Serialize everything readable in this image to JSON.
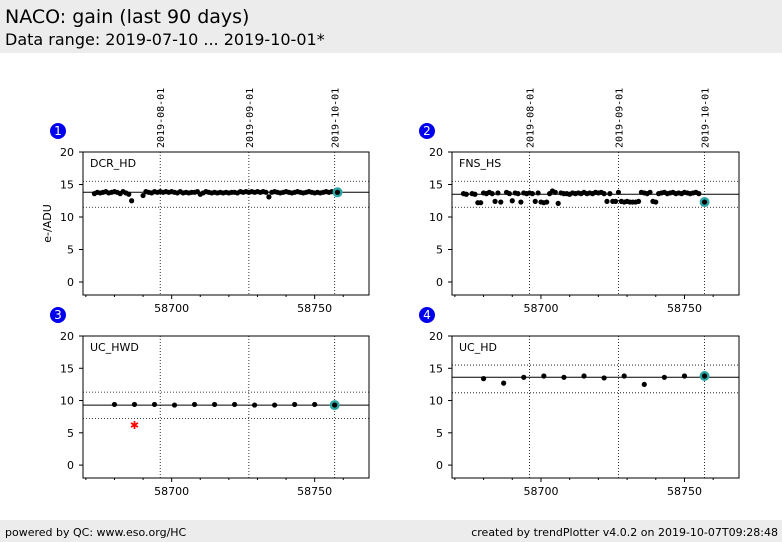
{
  "header": {
    "title": "NACO: gain (last 90 days)",
    "subtitle": "Data range: 2019-07-10 ... 2019-10-01*"
  },
  "footer": {
    "left": "powered by QC: www.eso.org/HC",
    "right": "created by trendPlotter v4.0.2 on 2019-10-07T09:28:48"
  },
  "colors": {
    "data": "#000000",
    "latest": "#2ca6a4",
    "outlier": "#ff0000",
    "badge": "#0000ee"
  },
  "chart_data": [
    {
      "type": "scatter",
      "panel": "1",
      "label": "DCR_HD",
      "ylabel": "e-/ADU",
      "xlim": [
        58669,
        58769
      ],
      "ylim": [
        -2,
        20
      ],
      "yticks": [
        0,
        5,
        10,
        15,
        20
      ],
      "xticks": [
        58700,
        58750
      ],
      "xtick_labels": [
        "58700",
        "58750"
      ],
      "date_lines": [
        58696,
        58727,
        58757
      ],
      "date_labels": [
        "2019-08-01",
        "2019-09-01",
        "2019-10-01"
      ],
      "ref_line": 13.8,
      "band": [
        11.5,
        15.5
      ],
      "series": [
        {
          "values": [
            [
              58673,
              13.6
            ],
            [
              58674,
              13.8
            ],
            [
              58675,
              13.7
            ],
            [
              58676,
              13.8
            ],
            [
              58677,
              13.9
            ],
            [
              58678,
              13.7
            ],
            [
              58679,
              13.8
            ],
            [
              58680,
              13.9
            ],
            [
              58681,
              13.8
            ],
            [
              58682,
              13.6
            ],
            [
              58683,
              13.9
            ],
            [
              58684,
              13.7
            ],
            [
              58685,
              13.5
            ],
            [
              58686,
              12.5
            ],
            [
              58690,
              13.3
            ],
            [
              58691,
              13.9
            ],
            [
              58692,
              13.8
            ],
            [
              58693,
              13.7
            ],
            [
              58694,
              13.9
            ],
            [
              58695,
              13.8
            ],
            [
              58696,
              13.9
            ],
            [
              58697,
              13.8
            ],
            [
              58698,
              13.9
            ],
            [
              58699,
              13.8
            ],
            [
              58700,
              13.9
            ],
            [
              58701,
              13.8
            ],
            [
              58702,
              13.7
            ],
            [
              58703,
              13.9
            ],
            [
              58704,
              13.7
            ],
            [
              58705,
              13.8
            ],
            [
              58706,
              13.7
            ],
            [
              58707,
              13.8
            ],
            [
              58708,
              13.8
            ],
            [
              58709,
              13.9
            ],
            [
              58710,
              13.5
            ],
            [
              58711,
              13.7
            ],
            [
              58712,
              13.9
            ],
            [
              58713,
              13.8
            ],
            [
              58714,
              13.7
            ],
            [
              58715,
              13.8
            ],
            [
              58716,
              13.7
            ],
            [
              58717,
              13.8
            ],
            [
              58718,
              13.7
            ],
            [
              58719,
              13.8
            ],
            [
              58720,
              13.7
            ],
            [
              58721,
              13.8
            ],
            [
              58722,
              13.8
            ],
            [
              58723,
              13.7
            ],
            [
              58724,
              13.9
            ],
            [
              58725,
              13.8
            ],
            [
              58726,
              13.9
            ],
            [
              58727,
              13.8
            ],
            [
              58728,
              13.9
            ],
            [
              58729,
              13.8
            ],
            [
              58730,
              13.9
            ],
            [
              58731,
              13.8
            ],
            [
              58732,
              13.9
            ],
            [
              58733,
              13.8
            ],
            [
              58734,
              13.1
            ],
            [
              58735,
              13.8
            ],
            [
              58736,
              13.9
            ],
            [
              58737,
              13.8
            ],
            [
              58738,
              13.7
            ],
            [
              58739,
              13.8
            ],
            [
              58740,
              13.9
            ],
            [
              58741,
              13.8
            ],
            [
              58742,
              13.7
            ],
            [
              58743,
              13.8
            ],
            [
              58744,
              13.9
            ],
            [
              58745,
              13.8
            ],
            [
              58746,
              13.7
            ],
            [
              58747,
              13.8
            ],
            [
              58748,
              13.9
            ],
            [
              58749,
              13.8
            ],
            [
              58750,
              13.7
            ],
            [
              58751,
              13.8
            ],
            [
              58752,
              13.7
            ],
            [
              58753,
              13.8
            ],
            [
              58754,
              13.9
            ],
            [
              58755,
              13.8
            ],
            [
              58756,
              13.9
            ]
          ]
        }
      ],
      "latest": [
        58758,
        13.8
      ]
    },
    {
      "type": "scatter",
      "panel": "2",
      "label": "FNS_HS",
      "ylabel": "",
      "xlim": [
        58669,
        58769
      ],
      "ylim": [
        -2,
        20
      ],
      "yticks": [
        0,
        5,
        10,
        15,
        20
      ],
      "xticks": [
        58700,
        58750
      ],
      "xtick_labels": [
        "58700",
        "58750"
      ],
      "date_lines": [
        58696,
        58727,
        58757
      ],
      "date_labels": [
        "2019-08-01",
        "2019-09-01",
        "2019-10-01"
      ],
      "ref_line": 13.5,
      "band": [
        11.5,
        15.5
      ],
      "series": [
        {
          "values": [
            [
              58673,
              13.6
            ],
            [
              58674,
              13.5
            ],
            [
              58676,
              13.6
            ],
            [
              58677,
              13.5
            ],
            [
              58678,
              12.2
            ],
            [
              58679,
              12.2
            ],
            [
              58680,
              13.7
            ],
            [
              58681,
              13.6
            ],
            [
              58682,
              13.8
            ],
            [
              58683,
              13.6
            ],
            [
              58684,
              12.4
            ],
            [
              58685,
              13.7
            ],
            [
              58686,
              12.3
            ],
            [
              58688,
              13.8
            ],
            [
              58689,
              13.6
            ],
            [
              58690,
              12.5
            ],
            [
              58691,
              13.7
            ],
            [
              58692,
              13.6
            ],
            [
              58693,
              12.3
            ],
            [
              58694,
              13.7
            ],
            [
              58695,
              13.6
            ],
            [
              58696,
              13.7
            ],
            [
              58697,
              13.6
            ],
            [
              58698,
              12.4
            ],
            [
              58699,
              13.7
            ],
            [
              58700,
              12.3
            ],
            [
              58701,
              12.2
            ],
            [
              58702,
              12.3
            ],
            [
              58703,
              13.6
            ],
            [
              58704,
              14.0
            ],
            [
              58705,
              13.8
            ],
            [
              58706,
              12.1
            ],
            [
              58707,
              13.7
            ],
            [
              58708,
              13.6
            ],
            [
              58709,
              13.6
            ],
            [
              58710,
              13.5
            ],
            [
              58711,
              13.7
            ],
            [
              58712,
              13.6
            ],
            [
              58713,
              13.7
            ],
            [
              58714,
              13.6
            ],
            [
              58715,
              13.8
            ],
            [
              58716,
              13.6
            ],
            [
              58717,
              13.7
            ],
            [
              58718,
              13.6
            ],
            [
              58719,
              13.8
            ],
            [
              58720,
              13.7
            ],
            [
              58721,
              13.8
            ],
            [
              58722,
              13.6
            ],
            [
              58723,
              12.4
            ],
            [
              58724,
              13.6
            ],
            [
              58725,
              12.4
            ],
            [
              58726,
              12.4
            ],
            [
              58727,
              13.8
            ],
            [
              58728,
              12.4
            ],
            [
              58729,
              12.3
            ],
            [
              58730,
              12.4
            ],
            [
              58731,
              12.3
            ],
            [
              58732,
              12.3
            ],
            [
              58733,
              12.3
            ],
            [
              58734,
              12.4
            ],
            [
              58735,
              13.8
            ],
            [
              58736,
              13.7
            ],
            [
              58737,
              13.6
            ],
            [
              58738,
              13.8
            ],
            [
              58739,
              12.4
            ],
            [
              58740,
              12.3
            ],
            [
              58741,
              13.6
            ],
            [
              58742,
              13.7
            ],
            [
              58743,
              13.8
            ],
            [
              58744,
              13.6
            ],
            [
              58745,
              13.7
            ],
            [
              58746,
              13.8
            ],
            [
              58747,
              13.6
            ],
            [
              58748,
              13.7
            ],
            [
              58749,
              13.6
            ],
            [
              58750,
              13.8
            ],
            [
              58751,
              13.7
            ],
            [
              58752,
              13.6
            ],
            [
              58753,
              13.7
            ],
            [
              58754,
              13.8
            ],
            [
              58755,
              13.6
            ]
          ]
        }
      ],
      "latest": [
        58757,
        12.3
      ]
    },
    {
      "type": "scatter",
      "panel": "3",
      "label": "UC_HWD",
      "ylabel": "",
      "xlim": [
        58669,
        58769
      ],
      "ylim": [
        -2,
        20
      ],
      "yticks": [
        0,
        5,
        10,
        15,
        20
      ],
      "xticks": [
        58700,
        58750
      ],
      "xtick_labels": [
        "58700",
        "58750"
      ],
      "date_lines": [
        58696,
        58727,
        58757
      ],
      "date_labels": [],
      "ref_line": 9.3,
      "band": [
        7.2,
        11.3
      ],
      "series": [
        {
          "values": [
            [
              58680,
              9.4
            ],
            [
              58687,
              9.4
            ],
            [
              58694,
              9.4
            ],
            [
              58701,
              9.3
            ],
            [
              58708,
              9.4
            ],
            [
              58715,
              9.4
            ],
            [
              58722,
              9.4
            ],
            [
              58729,
              9.3
            ],
            [
              58736,
              9.3
            ],
            [
              58743,
              9.4
            ],
            [
              58750,
              9.4
            ]
          ]
        }
      ],
      "outliers": [
        [
          58687,
          6.2
        ]
      ],
      "latest": [
        58757,
        9.3
      ]
    },
    {
      "type": "scatter",
      "panel": "4",
      "label": "UC_HD",
      "ylabel": "",
      "xlim": [
        58669,
        58769
      ],
      "ylim": [
        -2,
        20
      ],
      "yticks": [
        0,
        5,
        10,
        15,
        20
      ],
      "xticks": [
        58700,
        58750
      ],
      "xtick_labels": [
        "58700",
        "58750"
      ],
      "date_lines": [
        58696,
        58727,
        58757
      ],
      "date_labels": [],
      "ref_line": 13.6,
      "band": [
        11.2,
        15.5
      ],
      "series": [
        {
          "values": [
            [
              58680,
              13.4
            ],
            [
              58687,
              12.7
            ],
            [
              58694,
              13.6
            ],
            [
              58701,
              13.8
            ],
            [
              58708,
              13.6
            ],
            [
              58715,
              13.8
            ],
            [
              58722,
              13.5
            ],
            [
              58729,
              13.8
            ],
            [
              58736,
              12.5
            ],
            [
              58743,
              13.6
            ],
            [
              58750,
              13.8
            ]
          ]
        }
      ],
      "latest": [
        58757,
        13.8
      ]
    }
  ]
}
